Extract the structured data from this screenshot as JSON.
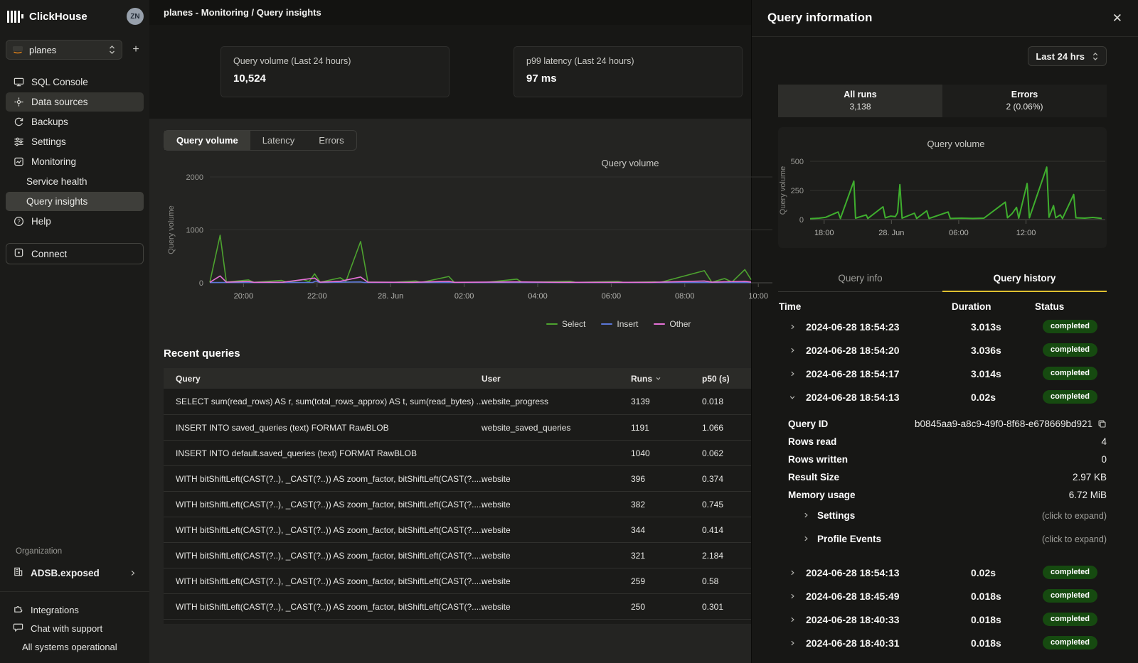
{
  "theme": {
    "accent_yellow": "#dfc12f",
    "badge_green_bg": "#164a10",
    "status_green": "#7dd491",
    "select_green": "#4da32f",
    "insert_blue": "#5b77d8",
    "other_pink": "#e671d8"
  },
  "sidebar": {
    "brand": "ClickHouse",
    "avatar": "ZN",
    "service_selector": {
      "value": "planes"
    },
    "items": [
      {
        "label": "SQL Console"
      },
      {
        "label": "Data sources"
      },
      {
        "label": "Backups"
      },
      {
        "label": "Settings"
      },
      {
        "label": "Monitoring"
      },
      {
        "label": "Service health"
      },
      {
        "label": "Query insights"
      },
      {
        "label": "Help"
      }
    ],
    "connect_label": "Connect",
    "organization": {
      "section_label": "Organization",
      "name": "ADSB.exposed"
    },
    "footer_items": [
      {
        "label": "Integrations"
      },
      {
        "label": "Chat with support"
      },
      {
        "label": "All systems operational"
      }
    ]
  },
  "topbar": {
    "breadcrumb": "planes - Monitoring / Query insights"
  },
  "stats": [
    {
      "label": "Query volume (Last 24 hours)",
      "value": "10,524"
    },
    {
      "label": "p99 latency (Last 24 hours)",
      "value": "97 ms"
    }
  ],
  "chart_tabs": [
    {
      "label": "Query volume"
    },
    {
      "label": "Latency"
    },
    {
      "label": "Errors"
    }
  ],
  "recent_queries": {
    "title": "Recent queries",
    "columns": {
      "query": "Query",
      "user": "User",
      "runs": "Runs",
      "p50": "p50 (s)"
    },
    "rows": [
      {
        "query": "SELECT sum(read_rows) AS r, sum(total_rows_approx) AS t, sum(read_bytes) ...",
        "user": "website_progress",
        "runs": "3139",
        "p50": "0.018"
      },
      {
        "query": "INSERT INTO saved_queries (text) FORMAT RawBLOB",
        "user": "website_saved_queries",
        "runs": "1191",
        "p50": "1.066"
      },
      {
        "query": "INSERT INTO default.saved_queries (text) FORMAT RawBLOB",
        "user": "",
        "runs": "1040",
        "p50": "0.062"
      },
      {
        "query": "WITH bitShiftLeft(CAST(?..), _CAST(?..)) AS zoom_factor, bitShiftLeft(CAST(?.....",
        "user": "website",
        "runs": "396",
        "p50": "0.374"
      },
      {
        "query": "WITH bitShiftLeft(CAST(?..), _CAST(?..)) AS zoom_factor, bitShiftLeft(CAST(?.....",
        "user": "website",
        "runs": "382",
        "p50": "0.745"
      },
      {
        "query": "WITH bitShiftLeft(CAST(?..), _CAST(?..)) AS zoom_factor, bitShiftLeft(CAST(?.....",
        "user": "website",
        "runs": "344",
        "p50": "0.414"
      },
      {
        "query": "WITH bitShiftLeft(CAST(?..), _CAST(?..)) AS zoom_factor, bitShiftLeft(CAST(?.....",
        "user": "website",
        "runs": "321",
        "p50": "2.184"
      },
      {
        "query": "WITH bitShiftLeft(CAST(?..), _CAST(?..)) AS zoom_factor, bitShiftLeft(CAST(?.....",
        "user": "website",
        "runs": "259",
        "p50": "0.58"
      },
      {
        "query": "WITH bitShiftLeft(CAST(?..), _CAST(?..)) AS zoom_factor, bitShiftLeft(CAST(?.....",
        "user": "website",
        "runs": "250",
        "p50": "0.301"
      }
    ]
  },
  "panel": {
    "title": "Query information",
    "time_range": "Last 24 hrs",
    "segments": [
      {
        "label": "All runs",
        "value": "3,138"
      },
      {
        "label": "Errors",
        "value": "2 (0.06%)"
      }
    ],
    "tabs": [
      {
        "label": "Query info"
      },
      {
        "label": "Query history"
      }
    ],
    "history": {
      "columns": {
        "time": "Time",
        "duration": "Duration",
        "status": "Status"
      },
      "rows": [
        {
          "time": "2024-06-28 18:54:23",
          "duration": "3.013s",
          "status": "completed"
        },
        {
          "time": "2024-06-28 18:54:20",
          "duration": "3.036s",
          "status": "completed"
        },
        {
          "time": "2024-06-28 18:54:17",
          "duration": "3.014s",
          "status": "completed"
        },
        {
          "time": "2024-06-28 18:54:13",
          "duration": "0.02s",
          "status": "completed"
        }
      ],
      "rows_after": [
        {
          "time": "2024-06-28 18:54:13",
          "duration": "0.02s",
          "status": "completed"
        },
        {
          "time": "2024-06-28 18:45:49",
          "duration": "0.018s",
          "status": "completed"
        },
        {
          "time": "2024-06-28 18:40:33",
          "duration": "0.018s",
          "status": "completed"
        },
        {
          "time": "2024-06-28 18:40:31",
          "duration": "0.018s",
          "status": "completed"
        }
      ]
    },
    "details": {
      "rows": [
        {
          "label": "Query ID",
          "value": "b0845aa9-a8c9-49f0-8f68-e678669bd921"
        },
        {
          "label": "Rows read",
          "value": "4"
        },
        {
          "label": "Rows written",
          "value": "0"
        },
        {
          "label": "Result Size",
          "value": "2.97 KB"
        },
        {
          "label": "Memory usage",
          "value": "6.72 MiB"
        }
      ],
      "expanders": [
        {
          "label": "Settings",
          "hint": "(click to expand)"
        },
        {
          "label": "Profile Events",
          "hint": "(click to expand)"
        }
      ]
    }
  },
  "chart_data": [
    {
      "type": "line",
      "title": "Query volume",
      "ylabel": "Query volume",
      "ylim": [
        0,
        2000
      ],
      "yticks": [
        0,
        1000,
        2000
      ],
      "x_unit": "hours from 2024-06-27 19:10",
      "x_range": [
        0,
        14.72
      ],
      "xticks": [
        {
          "h": 0.917,
          "label": "20:00"
        },
        {
          "h": 2.917,
          "label": "22:00"
        },
        {
          "h": 4.917,
          "label": "28. Jun"
        },
        {
          "h": 6.917,
          "label": "02:00"
        },
        {
          "h": 8.917,
          "label": "04:00"
        },
        {
          "h": 10.917,
          "label": "06:00"
        },
        {
          "h": 12.917,
          "label": "08:00"
        },
        {
          "h": 14.917,
          "label": "10:00"
        }
      ],
      "grid": true,
      "legend_position": "bottom-right",
      "series": [
        {
          "name": "Select",
          "color": "#4da32f",
          "points": [
            [
              0,
              8
            ],
            [
              0.28,
              900
            ],
            [
              0.45,
              15
            ],
            [
              1.05,
              55
            ],
            [
              1.2,
              10
            ],
            [
              1.95,
              45
            ],
            [
              2.1,
              10
            ],
            [
              2.55,
              60
            ],
            [
              2.7,
              20
            ],
            [
              2.85,
              170
            ],
            [
              3.0,
              12
            ],
            [
              3.55,
              95
            ],
            [
              3.7,
              25
            ],
            [
              4.1,
              780
            ],
            [
              4.3,
              15
            ],
            [
              5.0,
              10
            ],
            [
              5.6,
              35
            ],
            [
              5.75,
              8
            ],
            [
              6.5,
              120
            ],
            [
              6.65,
              10
            ],
            [
              7.5,
              8
            ],
            [
              8.35,
              70
            ],
            [
              8.5,
              8
            ],
            [
              9.8,
              30
            ],
            [
              9.95,
              8
            ],
            [
              11.1,
              25
            ],
            [
              11.25,
              8
            ],
            [
              12.1,
              18
            ],
            [
              12.25,
              8
            ],
            [
              13.45,
              230
            ],
            [
              13.65,
              12
            ],
            [
              14.0,
              80
            ],
            [
              14.2,
              15
            ],
            [
              14.55,
              250
            ],
            [
              14.72,
              60
            ]
          ]
        },
        {
          "name": "Insert",
          "color": "#5b77d8",
          "points": [
            [
              0,
              5
            ],
            [
              1.5,
              5
            ],
            [
              2.8,
              8
            ],
            [
              2.88,
              32
            ],
            [
              3.0,
              6
            ],
            [
              4.1,
              18
            ],
            [
              4.2,
              5
            ],
            [
              6,
              5
            ],
            [
              8,
              5
            ],
            [
              10,
              5
            ],
            [
              12,
              5
            ],
            [
              14.72,
              5
            ]
          ]
        },
        {
          "name": "Other",
          "color": "#e671d8",
          "points": [
            [
              0,
              10
            ],
            [
              0.28,
              130
            ],
            [
              0.45,
              12
            ],
            [
              1.05,
              25
            ],
            [
              1.2,
              10
            ],
            [
              2.0,
              12
            ],
            [
              2.85,
              90
            ],
            [
              3.0,
              12
            ],
            [
              3.55,
              30
            ],
            [
              4.1,
              110
            ],
            [
              4.3,
              12
            ],
            [
              5.5,
              10
            ],
            [
              6.5,
              30
            ],
            [
              6.65,
              10
            ],
            [
              8.35,
              18
            ],
            [
              9.5,
              10
            ],
            [
              12,
              10
            ],
            [
              13.45,
              35
            ],
            [
              13.65,
              12
            ],
            [
              14.0,
              20
            ],
            [
              14.55,
              30
            ],
            [
              14.72,
              15
            ]
          ]
        }
      ]
    },
    {
      "type": "line",
      "title": "Query volume",
      "ylabel": "Query volume",
      "ylim": [
        0,
        500
      ],
      "yticks": [
        0,
        250,
        500
      ],
      "x_unit": "hours from 2024-06-27 16:45",
      "x_range": [
        0,
        26
      ],
      "xticks": [
        {
          "h": 1.25,
          "label": "18:00"
        },
        {
          "h": 7.25,
          "label": "28. Jun"
        },
        {
          "h": 13.25,
          "label": "06:00"
        },
        {
          "h": 19.25,
          "label": "12:00"
        }
      ],
      "grid": true,
      "legend_position": "none",
      "series": [
        {
          "name": "Select",
          "color": "#3fae2e",
          "points": [
            [
              0,
              8
            ],
            [
              0.8,
              12
            ],
            [
              1.4,
              20
            ],
            [
              2.5,
              65
            ],
            [
              2.7,
              10
            ],
            [
              3.9,
              330
            ],
            [
              4.05,
              12
            ],
            [
              5.0,
              40
            ],
            [
              5.15,
              10
            ],
            [
              6.5,
              110
            ],
            [
              6.7,
              15
            ],
            [
              7.2,
              30
            ],
            [
              7.6,
              25
            ],
            [
              7.8,
              60
            ],
            [
              8.0,
              300
            ],
            [
              8.2,
              12
            ],
            [
              9.3,
              55
            ],
            [
              9.5,
              10
            ],
            [
              10.4,
              75
            ],
            [
              10.6,
              10
            ],
            [
              12.3,
              65
            ],
            [
              12.5,
              10
            ],
            [
              13.5,
              12
            ],
            [
              14.5,
              10
            ],
            [
              15.5,
              12
            ],
            [
              17.4,
              150
            ],
            [
              17.6,
              15
            ],
            [
              18.0,
              50
            ],
            [
              18.4,
              105
            ],
            [
              18.6,
              12
            ],
            [
              19.35,
              310
            ],
            [
              19.55,
              15
            ],
            [
              21.1,
              450
            ],
            [
              21.3,
              20
            ],
            [
              21.7,
              120
            ],
            [
              21.9,
              15
            ],
            [
              22.3,
              40
            ],
            [
              22.5,
              10
            ],
            [
              23.5,
              215
            ],
            [
              23.7,
              15
            ],
            [
              24.5,
              12
            ],
            [
              25.2,
              18
            ],
            [
              26,
              10
            ]
          ]
        }
      ]
    }
  ]
}
